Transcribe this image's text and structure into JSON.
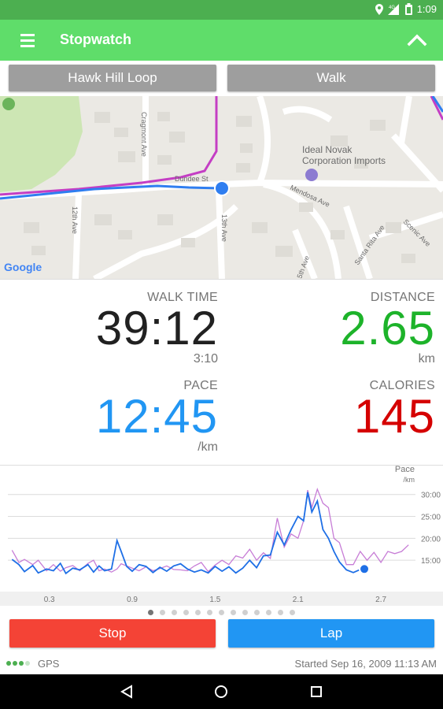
{
  "status_bar": {
    "time": "1:09",
    "network": "4G"
  },
  "app_bar": {
    "title": "Stopwatch"
  },
  "buttons": {
    "route": "Hawk Hill Loop",
    "activity": "Walk",
    "stop": "Stop",
    "lap": "Lap"
  },
  "map": {
    "streets": [
      "Dundee St",
      "Ideal Novak",
      "Corporation Imports",
      "Mendosa Ave",
      "12th Ave",
      "13th Ave",
      "Cragmont Ave",
      "Santa Rita Ave",
      "5th Ave",
      "Scenic Ave",
      "Google"
    ]
  },
  "stats": {
    "time": {
      "label": "WALK TIME",
      "value": "39:12",
      "sub": "3:10",
      "color": "#212121"
    },
    "distance": {
      "label": "DISTANCE",
      "value": "2.65",
      "sub": "km",
      "color": "#1db32a"
    },
    "pace": {
      "label": "PACE",
      "value": "12:45",
      "sub": "/km",
      "color": "#2196f3"
    },
    "calories": {
      "label": "CALORIES",
      "value": "145",
      "sub": "",
      "color": "#d50000"
    }
  },
  "chart_data": {
    "type": "line",
    "ylabel": "Pace",
    "yunit": "/km",
    "yticks": [
      "30:00",
      "25:00",
      "20:00",
      "15:00"
    ],
    "xticks": [
      "0.3",
      "0.9",
      "1.5",
      "2.1",
      "2.7"
    ],
    "series": [
      {
        "color": "#1e6fe6",
        "values": [
          [
            0.03,
            15.2
          ],
          [
            0.08,
            14
          ],
          [
            0.12,
            12.4
          ],
          [
            0.18,
            13.8
          ],
          [
            0.22,
            12.1
          ],
          [
            0.28,
            13
          ],
          [
            0.33,
            12.6
          ],
          [
            0.38,
            14.3
          ],
          [
            0.42,
            12
          ],
          [
            0.47,
            13.2
          ],
          [
            0.52,
            12.8
          ],
          [
            0.58,
            14
          ],
          [
            0.62,
            12.3
          ],
          [
            0.66,
            13.7
          ],
          [
            0.7,
            12.6
          ],
          [
            0.75,
            13
          ],
          [
            0.79,
            19.5
          ],
          [
            0.82,
            17
          ],
          [
            0.86,
            13.6
          ],
          [
            0.9,
            12.5
          ],
          [
            0.95,
            14
          ],
          [
            1.0,
            13.6
          ],
          [
            1.05,
            12.2
          ],
          [
            1.1,
            13.4
          ],
          [
            1.15,
            12.5
          ],
          [
            1.2,
            13.7
          ],
          [
            1.25,
            14.2
          ],
          [
            1.3,
            13
          ],
          [
            1.35,
            12.3
          ],
          [
            1.4,
            12.8
          ],
          [
            1.45,
            12.1
          ],
          [
            1.5,
            13.6
          ],
          [
            1.55,
            12.5
          ],
          [
            1.6,
            13.5
          ],
          [
            1.65,
            12.1
          ],
          [
            1.7,
            13.2
          ],
          [
            1.75,
            15
          ],
          [
            1.8,
            13.3
          ],
          [
            1.85,
            16
          ],
          [
            1.9,
            16.2
          ],
          [
            1.95,
            21.4
          ],
          [
            2.0,
            18.5
          ],
          [
            2.05,
            22
          ],
          [
            2.1,
            25
          ],
          [
            2.14,
            24
          ],
          [
            2.17,
            30.5
          ],
          [
            2.2,
            26
          ],
          [
            2.24,
            28.5
          ],
          [
            2.28,
            22
          ],
          [
            2.32,
            20
          ],
          [
            2.36,
            17
          ],
          [
            2.4,
            14.6
          ],
          [
            2.45,
            12.8
          ],
          [
            2.5,
            12.2
          ],
          [
            2.55,
            12.9
          ]
        ]
      },
      {
        "color": "#c77dd6",
        "values": [
          [
            0.03,
            17.3
          ],
          [
            0.08,
            14.5
          ],
          [
            0.12,
            15.2
          ],
          [
            0.18,
            14
          ],
          [
            0.22,
            15
          ],
          [
            0.28,
            12.6
          ],
          [
            0.33,
            14
          ],
          [
            0.38,
            12.5
          ],
          [
            0.42,
            13.3
          ],
          [
            0.47,
            13.8
          ],
          [
            0.52,
            12.6
          ],
          [
            0.58,
            14.3
          ],
          [
            0.62,
            15
          ],
          [
            0.66,
            12.6
          ],
          [
            0.7,
            13
          ],
          [
            0.75,
            12.3
          ],
          [
            0.79,
            13
          ],
          [
            0.82,
            14.2
          ],
          [
            0.86,
            13.7
          ],
          [
            0.9,
            13.2
          ],
          [
            0.95,
            12.6
          ],
          [
            1.0,
            13.5
          ],
          [
            1.05,
            12.6
          ],
          [
            1.1,
            13.1
          ],
          [
            1.15,
            13.7
          ],
          [
            1.2,
            12.9
          ],
          [
            1.25,
            12.8
          ],
          [
            1.3,
            12.6
          ],
          [
            1.35,
            13.7
          ],
          [
            1.4,
            14.5
          ],
          [
            1.45,
            12.4
          ],
          [
            1.5,
            13.9
          ],
          [
            1.55,
            15
          ],
          [
            1.6,
            14
          ],
          [
            1.65,
            16
          ],
          [
            1.7,
            15.5
          ],
          [
            1.75,
            17.5
          ],
          [
            1.8,
            15
          ],
          [
            1.85,
            16.7
          ],
          [
            1.9,
            15.4
          ],
          [
            1.95,
            24.6
          ],
          [
            2.0,
            18
          ],
          [
            2.05,
            21
          ],
          [
            2.1,
            20
          ],
          [
            2.14,
            24
          ],
          [
            2.17,
            31
          ],
          [
            2.2,
            27
          ],
          [
            2.24,
            31.2
          ],
          [
            2.28,
            28
          ],
          [
            2.32,
            27
          ],
          [
            2.36,
            20
          ],
          [
            2.4,
            19
          ],
          [
            2.45,
            14
          ],
          [
            2.5,
            14
          ],
          [
            2.55,
            17
          ],
          [
            2.6,
            15
          ],
          [
            2.65,
            16.8
          ],
          [
            2.7,
            14.5
          ],
          [
            2.75,
            17
          ],
          [
            2.8,
            16.5
          ],
          [
            2.85,
            17
          ],
          [
            2.9,
            18.5
          ]
        ]
      }
    ],
    "xlim": [
      0.0,
      2.95
    ],
    "ylim": [
      10,
      33
    ],
    "marker": {
      "x": 2.58,
      "y": 13.0
    }
  },
  "pager": {
    "pages": 13,
    "active": 0
  },
  "footer": {
    "gps_label": "GPS",
    "started": "Started Sep 16, 2009 11:13 AM"
  }
}
